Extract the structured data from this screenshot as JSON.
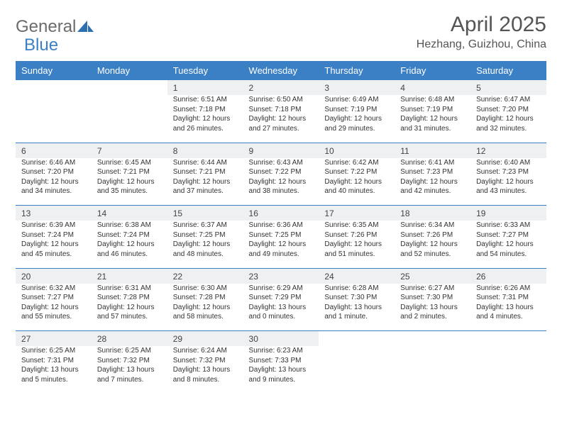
{
  "brand": {
    "part1": "General",
    "part2": "Blue"
  },
  "title": "April 2025",
  "location": "Hezhang, Guizhou, China",
  "colors": {
    "header_bg": "#3b7fc4",
    "header_text": "#ffffff",
    "daynum_bg": "#eef0f1",
    "separator": "#3b7fc4"
  },
  "day_headers": [
    "Sunday",
    "Monday",
    "Tuesday",
    "Wednesday",
    "Thursday",
    "Friday",
    "Saturday"
  ],
  "weeks": [
    [
      null,
      null,
      {
        "n": "1",
        "sr": "6:51 AM",
        "ss": "7:18 PM",
        "dl": "12 hours and 26 minutes."
      },
      {
        "n": "2",
        "sr": "6:50 AM",
        "ss": "7:18 PM",
        "dl": "12 hours and 27 minutes."
      },
      {
        "n": "3",
        "sr": "6:49 AM",
        "ss": "7:19 PM",
        "dl": "12 hours and 29 minutes."
      },
      {
        "n": "4",
        "sr": "6:48 AM",
        "ss": "7:19 PM",
        "dl": "12 hours and 31 minutes."
      },
      {
        "n": "5",
        "sr": "6:47 AM",
        "ss": "7:20 PM",
        "dl": "12 hours and 32 minutes."
      }
    ],
    [
      {
        "n": "6",
        "sr": "6:46 AM",
        "ss": "7:20 PM",
        "dl": "12 hours and 34 minutes."
      },
      {
        "n": "7",
        "sr": "6:45 AM",
        "ss": "7:21 PM",
        "dl": "12 hours and 35 minutes."
      },
      {
        "n": "8",
        "sr": "6:44 AM",
        "ss": "7:21 PM",
        "dl": "12 hours and 37 minutes."
      },
      {
        "n": "9",
        "sr": "6:43 AM",
        "ss": "7:22 PM",
        "dl": "12 hours and 38 minutes."
      },
      {
        "n": "10",
        "sr": "6:42 AM",
        "ss": "7:22 PM",
        "dl": "12 hours and 40 minutes."
      },
      {
        "n": "11",
        "sr": "6:41 AM",
        "ss": "7:23 PM",
        "dl": "12 hours and 42 minutes."
      },
      {
        "n": "12",
        "sr": "6:40 AM",
        "ss": "7:23 PM",
        "dl": "12 hours and 43 minutes."
      }
    ],
    [
      {
        "n": "13",
        "sr": "6:39 AM",
        "ss": "7:24 PM",
        "dl": "12 hours and 45 minutes."
      },
      {
        "n": "14",
        "sr": "6:38 AM",
        "ss": "7:24 PM",
        "dl": "12 hours and 46 minutes."
      },
      {
        "n": "15",
        "sr": "6:37 AM",
        "ss": "7:25 PM",
        "dl": "12 hours and 48 minutes."
      },
      {
        "n": "16",
        "sr": "6:36 AM",
        "ss": "7:25 PM",
        "dl": "12 hours and 49 minutes."
      },
      {
        "n": "17",
        "sr": "6:35 AM",
        "ss": "7:26 PM",
        "dl": "12 hours and 51 minutes."
      },
      {
        "n": "18",
        "sr": "6:34 AM",
        "ss": "7:26 PM",
        "dl": "12 hours and 52 minutes."
      },
      {
        "n": "19",
        "sr": "6:33 AM",
        "ss": "7:27 PM",
        "dl": "12 hours and 54 minutes."
      }
    ],
    [
      {
        "n": "20",
        "sr": "6:32 AM",
        "ss": "7:27 PM",
        "dl": "12 hours and 55 minutes."
      },
      {
        "n": "21",
        "sr": "6:31 AM",
        "ss": "7:28 PM",
        "dl": "12 hours and 57 minutes."
      },
      {
        "n": "22",
        "sr": "6:30 AM",
        "ss": "7:28 PM",
        "dl": "12 hours and 58 minutes."
      },
      {
        "n": "23",
        "sr": "6:29 AM",
        "ss": "7:29 PM",
        "dl": "13 hours and 0 minutes."
      },
      {
        "n": "24",
        "sr": "6:28 AM",
        "ss": "7:30 PM",
        "dl": "13 hours and 1 minute."
      },
      {
        "n": "25",
        "sr": "6:27 AM",
        "ss": "7:30 PM",
        "dl": "13 hours and 2 minutes."
      },
      {
        "n": "26",
        "sr": "6:26 AM",
        "ss": "7:31 PM",
        "dl": "13 hours and 4 minutes."
      }
    ],
    [
      {
        "n": "27",
        "sr": "6:25 AM",
        "ss": "7:31 PM",
        "dl": "13 hours and 5 minutes."
      },
      {
        "n": "28",
        "sr": "6:25 AM",
        "ss": "7:32 PM",
        "dl": "13 hours and 7 minutes."
      },
      {
        "n": "29",
        "sr": "6:24 AM",
        "ss": "7:32 PM",
        "dl": "13 hours and 8 minutes."
      },
      {
        "n": "30",
        "sr": "6:23 AM",
        "ss": "7:33 PM",
        "dl": "13 hours and 9 minutes."
      },
      null,
      null,
      null
    ]
  ],
  "labels": {
    "sunrise": "Sunrise:",
    "sunset": "Sunset:",
    "daylight": "Daylight:"
  }
}
